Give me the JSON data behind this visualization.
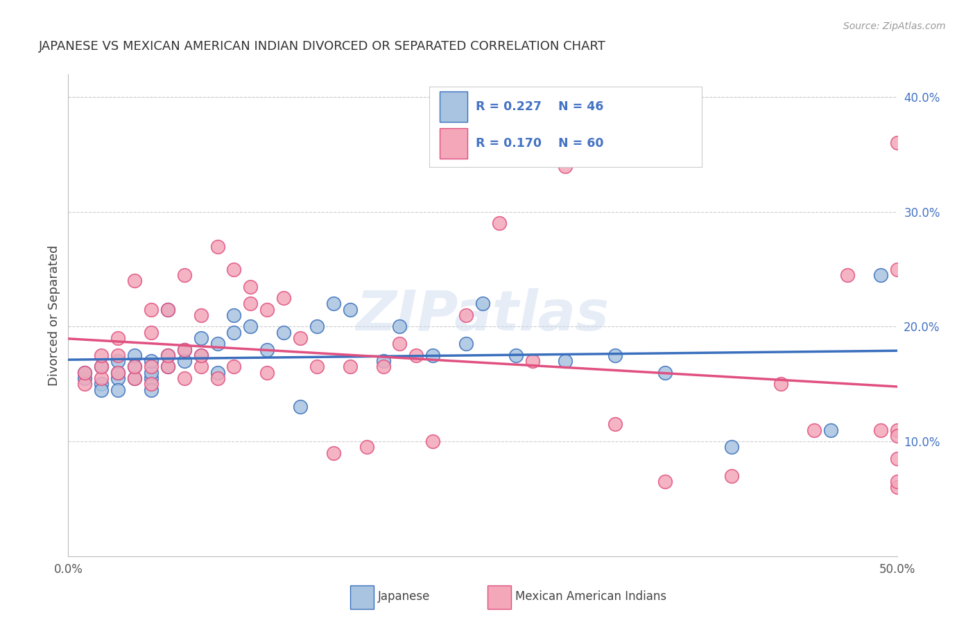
{
  "title": "JAPANESE VS MEXICAN AMERICAN INDIAN DIVORCED OR SEPARATED CORRELATION CHART",
  "source": "Source: ZipAtlas.com",
  "ylabel": "Divorced or Separated",
  "watermark": "ZIPatlas",
  "xlim": [
    0.0,
    0.5
  ],
  "ylim": [
    0.0,
    0.42
  ],
  "xticks": [
    0.0,
    0.1,
    0.2,
    0.3,
    0.4,
    0.5
  ],
  "xticklabels": [
    "0.0%",
    "",
    "",
    "",
    "",
    "50.0%"
  ],
  "yticks_right": [
    0.1,
    0.2,
    0.3,
    0.4
  ],
  "ytick_right_labels": [
    "10.0%",
    "20.0%",
    "30.0%",
    "40.0%"
  ],
  "color_blue": "#a8c4e0",
  "color_pink": "#f4a7b9",
  "line_color_blue": "#3a6fbd",
  "line_color_pink": "#e05080",
  "title_color": "#333333",
  "source_color": "#999999",
  "legend_text_color": "#4472c4",
  "grid_color": "#cccccc",
  "blue_scatter_x": [
    0.01,
    0.01,
    0.02,
    0.02,
    0.02,
    0.03,
    0.03,
    0.03,
    0.03,
    0.04,
    0.04,
    0.04,
    0.05,
    0.05,
    0.05,
    0.05,
    0.06,
    0.06,
    0.06,
    0.07,
    0.07,
    0.08,
    0.08,
    0.09,
    0.09,
    0.1,
    0.1,
    0.11,
    0.12,
    0.13,
    0.14,
    0.15,
    0.16,
    0.17,
    0.19,
    0.2,
    0.22,
    0.24,
    0.25,
    0.27,
    0.3,
    0.33,
    0.36,
    0.4,
    0.46,
    0.49
  ],
  "blue_scatter_y": [
    0.155,
    0.16,
    0.15,
    0.145,
    0.165,
    0.155,
    0.16,
    0.17,
    0.145,
    0.155,
    0.165,
    0.175,
    0.155,
    0.16,
    0.17,
    0.145,
    0.175,
    0.165,
    0.215,
    0.18,
    0.17,
    0.19,
    0.175,
    0.16,
    0.185,
    0.195,
    0.21,
    0.2,
    0.18,
    0.195,
    0.13,
    0.2,
    0.22,
    0.215,
    0.17,
    0.2,
    0.175,
    0.185,
    0.22,
    0.175,
    0.17,
    0.175,
    0.16,
    0.095,
    0.11,
    0.245
  ],
  "pink_scatter_x": [
    0.01,
    0.01,
    0.02,
    0.02,
    0.02,
    0.03,
    0.03,
    0.03,
    0.04,
    0.04,
    0.04,
    0.05,
    0.05,
    0.05,
    0.05,
    0.06,
    0.06,
    0.06,
    0.07,
    0.07,
    0.07,
    0.08,
    0.08,
    0.08,
    0.09,
    0.09,
    0.1,
    0.1,
    0.11,
    0.11,
    0.12,
    0.12,
    0.13,
    0.14,
    0.15,
    0.16,
    0.17,
    0.18,
    0.19,
    0.2,
    0.21,
    0.22,
    0.24,
    0.26,
    0.28,
    0.3,
    0.33,
    0.36,
    0.4,
    0.43,
    0.45,
    0.47,
    0.49,
    0.5,
    0.5,
    0.5,
    0.5,
    0.5,
    0.5,
    0.5
  ],
  "pink_scatter_y": [
    0.15,
    0.16,
    0.155,
    0.165,
    0.175,
    0.16,
    0.175,
    0.19,
    0.155,
    0.165,
    0.24,
    0.15,
    0.165,
    0.195,
    0.215,
    0.165,
    0.175,
    0.215,
    0.155,
    0.18,
    0.245,
    0.165,
    0.175,
    0.21,
    0.155,
    0.27,
    0.165,
    0.25,
    0.22,
    0.235,
    0.16,
    0.215,
    0.225,
    0.19,
    0.165,
    0.09,
    0.165,
    0.095,
    0.165,
    0.185,
    0.175,
    0.1,
    0.21,
    0.29,
    0.17,
    0.34,
    0.115,
    0.065,
    0.07,
    0.15,
    0.11,
    0.245,
    0.11,
    0.36,
    0.085,
    0.11,
    0.06,
    0.105,
    0.065,
    0.25
  ]
}
